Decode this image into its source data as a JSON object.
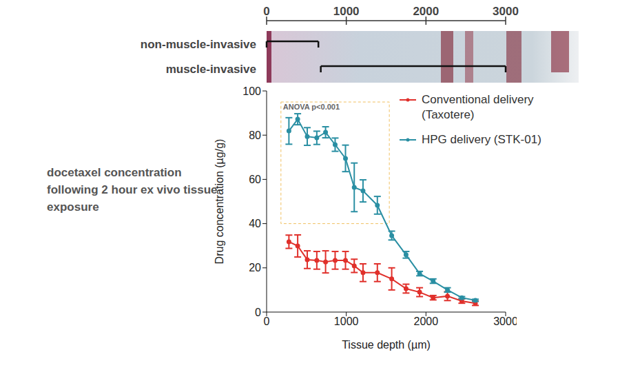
{
  "chart_data": {
    "type": "line",
    "annotation": "docetaxel concentration following 2 hour ex vivo tissue exposure",
    "x_label": "Tissue depth (µm)",
    "y_label": "Drug concentration (µg/g)",
    "x": [
      280,
      390,
      510,
      630,
      740,
      860,
      990,
      1100,
      1210,
      1390,
      1570,
      1750,
      1920,
      2090,
      2270,
      2450,
      2620
    ],
    "series": [
      {
        "name": "Conventional delivery (Taxotere)",
        "color": "#e0302b",
        "marker": "circle",
        "values": [
          31.8,
          29.9,
          23.7,
          23.4,
          22.7,
          23.4,
          23.4,
          20.9,
          17.8,
          17.8,
          15.0,
          10.6,
          9.0,
          6.5,
          7.2,
          5.0,
          4.0
        ],
        "error": [
          3,
          5,
          4,
          4,
          5,
          4,
          4,
          3,
          4,
          4,
          5,
          2,
          2,
          1,
          2,
          1,
          1
        ]
      },
      {
        "name": "HPG delivery (STK-01)",
        "color": "#2a8fa3",
        "marker": "circle",
        "values": [
          81.9,
          87.2,
          79.4,
          78.8,
          81.3,
          75.7,
          69.5,
          56.4,
          54.8,
          48.3,
          34.6,
          25.9,
          17.4,
          14.0,
          10.0,
          6.5,
          5.3
        ],
        "error": [
          6,
          2.5,
          4,
          3,
          2.5,
          3,
          6,
          11,
          5,
          4,
          2,
          1.5,
          1,
          1,
          1,
          0.5,
          0.5
        ]
      }
    ],
    "xlim": [
      0,
      3000
    ],
    "xticks": [
      0,
      1000,
      2000,
      3000
    ],
    "ylim": [
      0,
      100
    ],
    "yticks": [
      0,
      20,
      40,
      60,
      80,
      100
    ],
    "legend": "upper right",
    "annotation_box": {
      "text": "ANOVA p<0.001",
      "x": [
        180,
        1540
      ],
      "y": [
        40,
        95
      ]
    },
    "top_scale": {
      "xlim": [
        0,
        3000
      ],
      "xticks": [
        0,
        1000,
        2000,
        3000
      ],
      "regions": [
        {
          "label": "non-muscle-invasive",
          "start": 0,
          "end": 650
        },
        {
          "label": "muscle-invasive",
          "start": 680,
          "end": 3000
        }
      ]
    }
  }
}
